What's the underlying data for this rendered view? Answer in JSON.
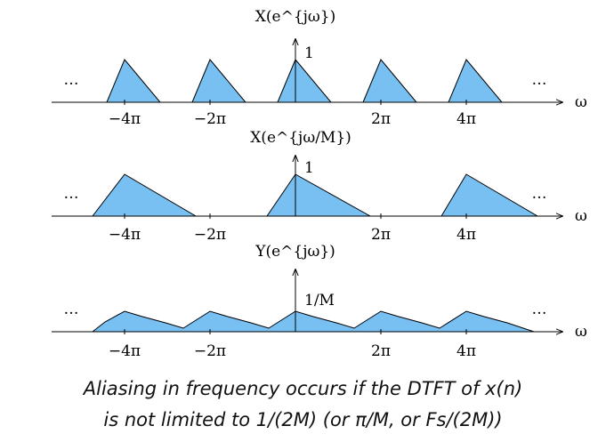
{
  "diagram": {
    "fill_color": "#79c0f2",
    "panels": [
      {
        "title": "X(e^{jω})",
        "peak_label": "1",
        "ellipsis": "…",
        "axis_var": "ω",
        "ticks": [
          "−4π",
          "−2π",
          "2π",
          "4π"
        ],
        "shape": "narrow-triangles",
        "triangle_support_half_width": "π/2"
      },
      {
        "title": "X(e^{jω/M})",
        "peak_label": "1",
        "ellipsis": "…",
        "axis_var": "ω",
        "ticks": [
          "−4π",
          "−2π",
          "2π",
          "4π"
        ],
        "shape": "wide-triangles",
        "triangle_support_half_width": "π"
      },
      {
        "title": "Y(e^{jω})",
        "peak_label": "1/M",
        "ellipsis": "…",
        "axis_var": "ω",
        "ticks": [
          "−4π",
          "−2π",
          "2π",
          "4π"
        ],
        "shape": "aliased-sum"
      }
    ]
  },
  "caption": {
    "line1": "Aliasing in frequency occurs if the DTFT of x(n)",
    "line2": "is not limited to 1/(2M) (or π/M, or Fs/(2M))"
  }
}
